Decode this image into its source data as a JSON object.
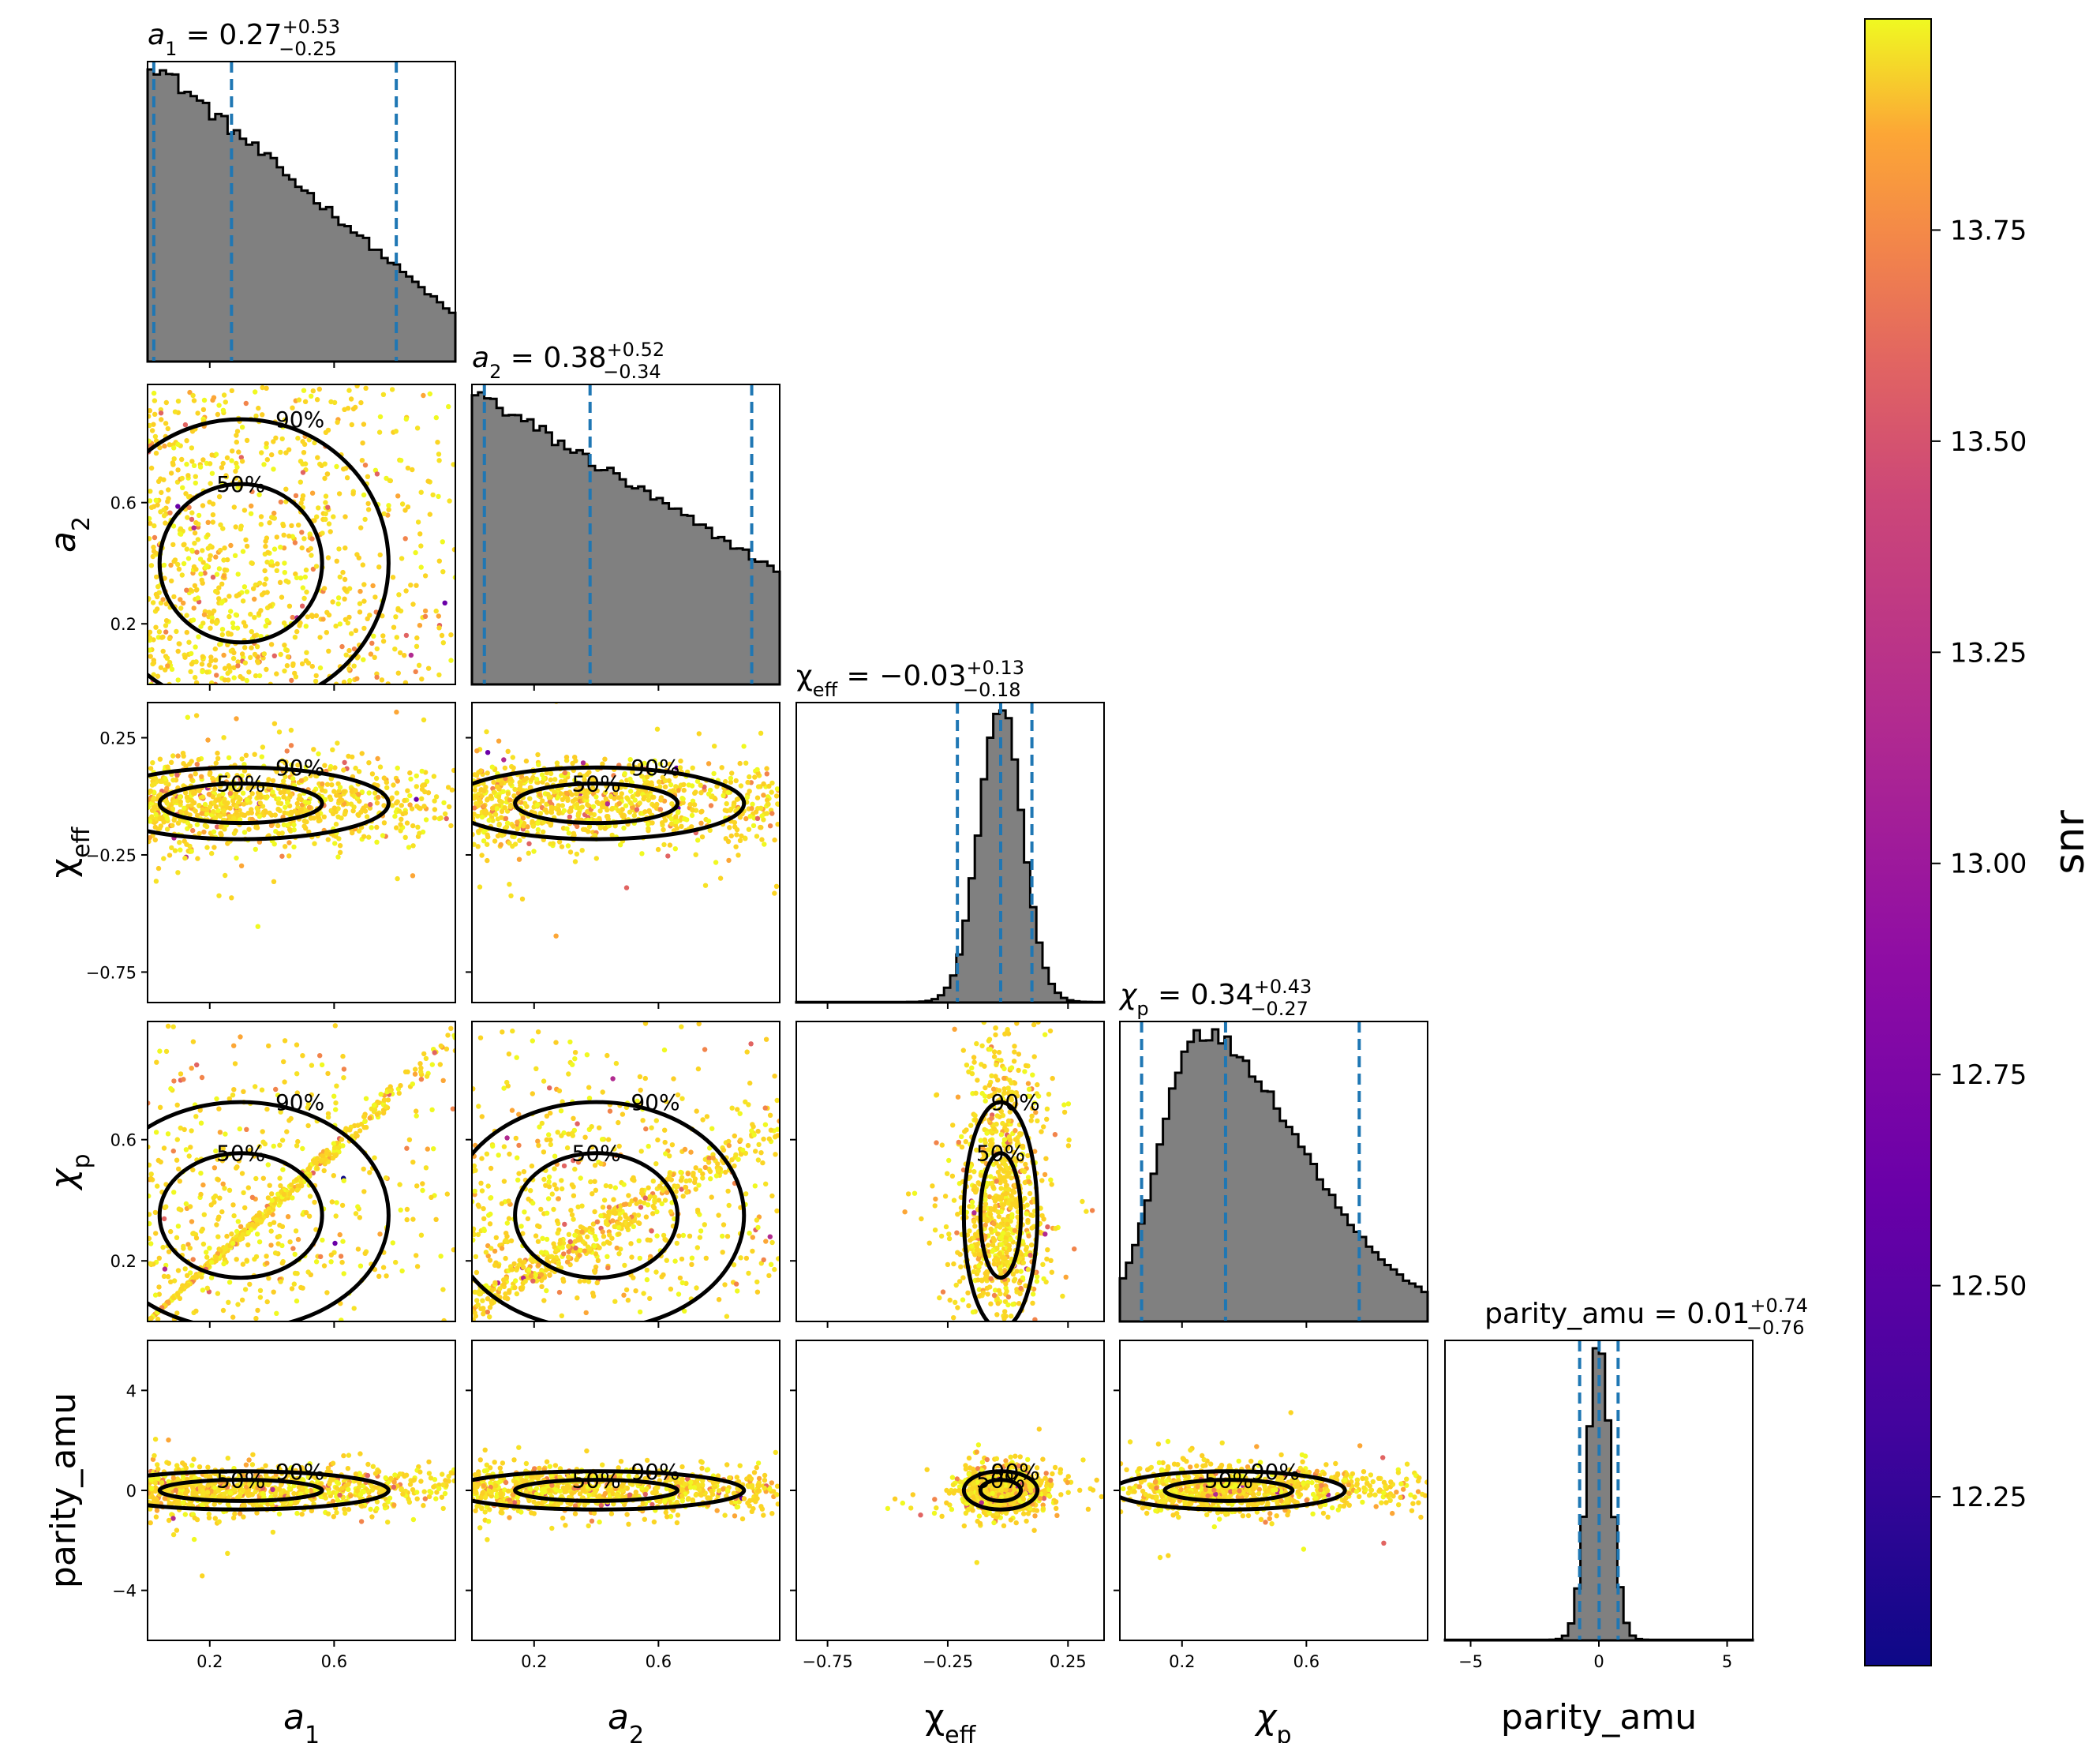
{
  "chart_data": {
    "type": "corner",
    "parameters": [
      {
        "key": "a1",
        "label": "a",
        "sub": "1",
        "italic": true,
        "range": [
          0.0,
          0.99
        ],
        "title_value": "0.27",
        "title_plus": "+0.53",
        "title_minus": "−0.25",
        "quantiles": [
          0.02,
          0.27,
          0.8
        ],
        "mean": 0.3,
        "sd": 0.3,
        "kind": "decay",
        "ticks": [
          {
            "v": 0.2,
            "label": "0.2"
          },
          {
            "v": 0.6,
            "label": "0.6"
          }
        ]
      },
      {
        "key": "a2",
        "label": "a",
        "sub": "2",
        "italic": true,
        "range": [
          0.0,
          0.99
        ],
        "title_value": "0.38",
        "title_plus": "+0.52",
        "title_minus": "−0.34",
        "quantiles": [
          0.04,
          0.38,
          0.9
        ],
        "mean": 0.4,
        "sd": 0.3,
        "kind": "linear",
        "ticks": [
          {
            "v": 0.2,
            "label": "0.2"
          },
          {
            "v": 0.6,
            "label": "0.6"
          }
        ]
      },
      {
        "key": "chi_eff",
        "label": "χ",
        "sub": "eff",
        "italic": false,
        "range": [
          -0.88,
          0.4
        ],
        "title_value": "−0.03",
        "title_plus": "+0.13",
        "title_minus": "−0.18",
        "quantiles": [
          -0.21,
          -0.03,
          0.1
        ],
        "mean": -0.03,
        "sd": 0.09,
        "kind": "gauss",
        "ticks": [
          {
            "v": -0.75,
            "label": "−0.75"
          },
          {
            "v": -0.25,
            "label": "−0.25"
          },
          {
            "v": 0.25,
            "label": "0.25"
          }
        ]
      },
      {
        "key": "chi_p",
        "label": "χ",
        "sub": "p",
        "italic": true,
        "range": [
          0.0,
          0.99
        ],
        "title_value": "0.34",
        "title_plus": "+0.43",
        "title_minus": "−0.27",
        "quantiles": [
          0.07,
          0.34,
          0.77
        ],
        "mean": 0.35,
        "sd": 0.22,
        "kind": "skew",
        "ticks": [
          {
            "v": 0.2,
            "label": "0.2"
          },
          {
            "v": 0.6,
            "label": "0.6"
          }
        ]
      },
      {
        "key": "parity_amu",
        "label": "parity_amu",
        "sub": "",
        "italic": false,
        "range": [
          -6.0,
          6.0
        ],
        "title_value": "0.01",
        "title_plus": "+0.74",
        "title_minus": "−0.76",
        "quantiles": [
          -0.75,
          0.01,
          0.75
        ],
        "mean": 0.0,
        "sd": 0.45,
        "kind": "gauss",
        "ticks": [
          {
            "v": -5,
            "label": "−5"
          },
          {
            "v": 0,
            "label": "0"
          },
          {
            "v": 5,
            "label": "5"
          }
        ]
      }
    ],
    "row_ticks": {
      "a2": [
        {
          "v": 0.2,
          "label": "0.2"
        },
        {
          "v": 0.6,
          "label": "0.6"
        }
      ],
      "chi_eff": [
        {
          "v": -0.75,
          "label": "−0.75"
        },
        {
          "v": -0.25,
          "label": "−0.25"
        },
        {
          "v": 0.25,
          "label": "0.25"
        }
      ],
      "chi_p": [
        {
          "v": 0.2,
          "label": "0.2"
        },
        {
          "v": 0.6,
          "label": "0.6"
        }
      ],
      "parity_amu": [
        {
          "v": -4,
          "label": "−4"
        },
        {
          "v": 0,
          "label": "0"
        },
        {
          "v": 4,
          "label": "4"
        }
      ]
    },
    "contour_levels": [
      "50%",
      "90%"
    ],
    "colorbar": {
      "label": "snr",
      "min": 12.05,
      "max": 14.0,
      "colormap": "plasma",
      "ticks": [
        "12.25",
        "12.50",
        "12.75",
        "13.00",
        "13.25",
        "13.50",
        "13.75"
      ]
    },
    "histogram_color": "#808080",
    "quantile_line_color": "#1f77b4"
  }
}
